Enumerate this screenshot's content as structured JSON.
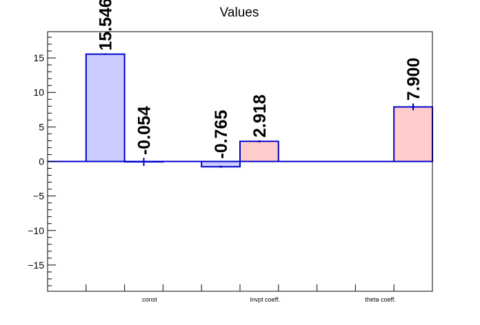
{
  "chart_data": {
    "type": "bar",
    "title": "Values",
    "xlabel": "",
    "ylabel": "",
    "ylim": [
      -18.8,
      18.8
    ],
    "yticks": [
      -15,
      -10,
      -5,
      0,
      5,
      10,
      15
    ],
    "ytick_labels": [
      "−15",
      "−10",
      "−5",
      "0",
      "5",
      "10",
      "15"
    ],
    "categories": [
      "const",
      "invpt coeff.",
      "theta coeff."
    ],
    "series": [
      {
        "color": "#ccccff",
        "edge": "#0000cc",
        "values": [
          15.546,
          -0.765,
          null
        ],
        "errors": [
          0.1,
          0.15,
          null
        ],
        "labels": [
          "15.546",
          "-0.765",
          ""
        ]
      },
      {
        "color": "#ffcccc",
        "edge": "#0000cc",
        "values": [
          -0.054,
          2.918,
          7.9
        ],
        "errors": [
          0.6,
          0.15,
          0.5
        ],
        "labels": "-0.054|2.918|7.900"
      }
    ],
    "grid": false,
    "legend": "none"
  }
}
